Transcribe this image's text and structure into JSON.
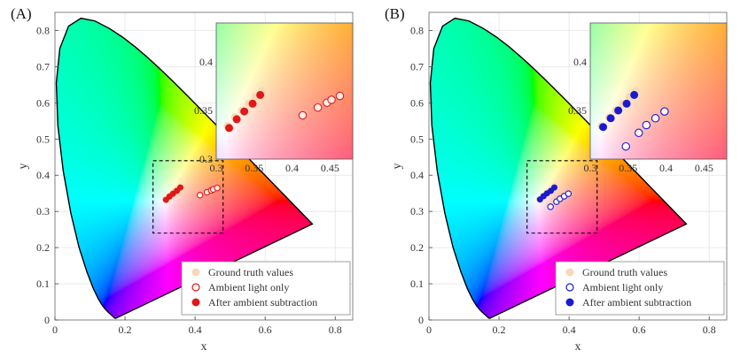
{
  "chart_data": [
    {
      "type": "scatter",
      "panel_label": "(A)",
      "xlabel": "x",
      "ylabel": "y",
      "xlim": [
        0,
        0.85
      ],
      "ylim": [
        0,
        0.85
      ],
      "x_ticks": [
        0,
        0.2,
        0.4,
        0.6,
        0.8
      ],
      "x_tick_labels": [
        "0",
        "0.2",
        "0.4",
        "0.6",
        "0.8"
      ],
      "y_ticks": [
        0,
        0.1,
        0.2,
        0.3,
        0.4,
        0.5,
        0.6,
        0.7,
        0.8
      ],
      "y_tick_labels": [
        "0",
        "0.1",
        "0.2",
        "0.3",
        "0.4",
        "0.5",
        "0.6",
        "0.7",
        "0.8"
      ],
      "grid": true,
      "legend_position": "bottom-right",
      "accent_color": "#e01818",
      "zoom_box": {
        "x": [
          0.28,
          0.48
        ],
        "y": [
          0.24,
          0.44
        ]
      },
      "inset": {
        "xlim": [
          0.3,
          0.48
        ],
        "ylim": [
          0.3,
          0.44
        ],
        "x_ticks": [
          0.3,
          0.35,
          0.4,
          0.45
        ],
        "x_tick_labels": [
          "0.3",
          "0.35",
          "0.4",
          "0.45"
        ],
        "y_ticks": [
          0.3,
          0.35,
          0.4
        ],
        "y_tick_labels": [
          "0.3",
          "0.35",
          "0.4"
        ]
      },
      "series": [
        {
          "name": "Ground truth values",
          "marker": "filled",
          "color": "#f7d9b5",
          "x": [
            0.315,
            0.325,
            0.334,
            0.343,
            0.352,
            0.36
          ],
          "y": [
            0.334,
            0.343,
            0.35,
            0.357,
            0.364,
            0.37
          ]
        },
        {
          "name": "Ambient light only",
          "marker": "open",
          "color": "#e01818",
          "x": [
            0.414,
            0.434,
            0.446,
            0.452,
            0.463
          ],
          "y": [
            0.345,
            0.353,
            0.358,
            0.361,
            0.365
          ]
        },
        {
          "name": "After ambient subtraction",
          "marker": "filled",
          "color": "#e01818",
          "x": [
            0.317,
            0.327,
            0.337,
            0.348,
            0.358
          ],
          "y": [
            0.332,
            0.341,
            0.349,
            0.357,
            0.366
          ]
        }
      ]
    },
    {
      "type": "scatter",
      "panel_label": "(B)",
      "xlabel": "x",
      "ylabel": "y",
      "xlim": [
        0,
        0.85
      ],
      "ylim": [
        0,
        0.85
      ],
      "x_ticks": [
        0,
        0.2,
        0.4,
        0.6,
        0.8
      ],
      "x_tick_labels": [
        "0",
        "0.2",
        "0.4",
        "0.6",
        "0.8"
      ],
      "y_ticks": [
        0,
        0.1,
        0.2,
        0.3,
        0.4,
        0.5,
        0.6,
        0.7,
        0.8
      ],
      "y_tick_labels": [
        "0",
        "0.1",
        "0.2",
        "0.3",
        "0.4",
        "0.5",
        "0.6",
        "0.7",
        "0.8"
      ],
      "grid": true,
      "legend_position": "bottom-right",
      "accent_color": "#1a1ad0",
      "zoom_box": {
        "x": [
          0.28,
          0.48
        ],
        "y": [
          0.24,
          0.44
        ]
      },
      "inset": {
        "xlim": [
          0.3,
          0.48
        ],
        "ylim": [
          0.3,
          0.44
        ],
        "x_ticks": [
          0.3,
          0.35,
          0.4,
          0.45
        ],
        "x_tick_labels": [
          "0.3",
          "0.35",
          "0.4",
          "0.45"
        ],
        "y_ticks": [
          0.35,
          0.4
        ],
        "y_tick_labels": [
          "0.35",
          "0.4"
        ]
      },
      "series": [
        {
          "name": "Ground truth values",
          "marker": "filled",
          "color": "#f7d9b5",
          "x": [
            0.315,
            0.325,
            0.334,
            0.343,
            0.352,
            0.36
          ],
          "y": [
            0.334,
            0.343,
            0.35,
            0.357,
            0.364,
            0.37
          ]
        },
        {
          "name": "Ambient light only",
          "marker": "open",
          "color": "#1a1ad0",
          "x": [
            0.347,
            0.364,
            0.374,
            0.386,
            0.398
          ],
          "y": [
            0.313,
            0.327,
            0.335,
            0.342,
            0.349
          ]
        },
        {
          "name": "After ambient subtraction",
          "marker": "filled",
          "color": "#1a1ad0",
          "x": [
            0.317,
            0.327,
            0.337,
            0.348,
            0.358
          ],
          "y": [
            0.333,
            0.342,
            0.35,
            0.357,
            0.366
          ]
        }
      ]
    }
  ]
}
